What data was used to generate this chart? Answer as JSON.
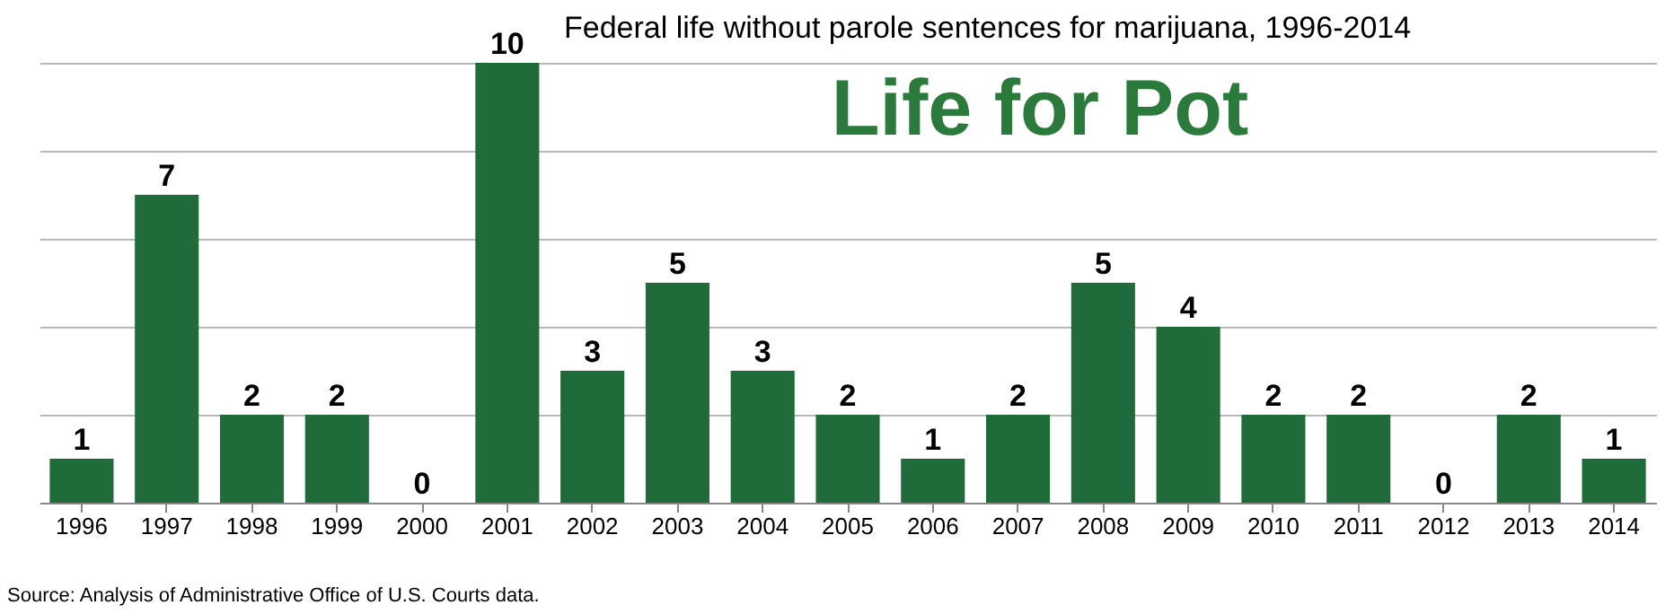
{
  "chart_data": {
    "type": "bar",
    "title": "Federal life without parole sentences for marijuana, 1996-2014",
    "subtitle": "Life for Pot",
    "categories": [
      "1996",
      "1997",
      "1998",
      "1999",
      "2000",
      "2001",
      "2002",
      "2003",
      "2004",
      "2005",
      "2006",
      "2007",
      "2008",
      "2009",
      "2010",
      "2011",
      "2012",
      "2013",
      "2014"
    ],
    "values": [
      1,
      7,
      2,
      2,
      0,
      10,
      3,
      5,
      3,
      2,
      1,
      2,
      5,
      4,
      2,
      2,
      0,
      2,
      1
    ],
    "color": "#1f6b3a",
    "data_labels": true,
    "ylim": [
      0,
      10
    ],
    "yticks": [
      {
        "value": 0,
        "label": null
      },
      {
        "value": 2,
        "label": null
      },
      {
        "value": 4,
        "label": null
      },
      {
        "value": 6,
        "label": null
      },
      {
        "value": 8,
        "label": null
      },
      {
        "value": 10,
        "label": null
      }
    ],
    "grid": "y",
    "tick_labels": "x",
    "annotations": [
      "Source: Analysis of Administrative Office of U.S. Courts data."
    ]
  }
}
